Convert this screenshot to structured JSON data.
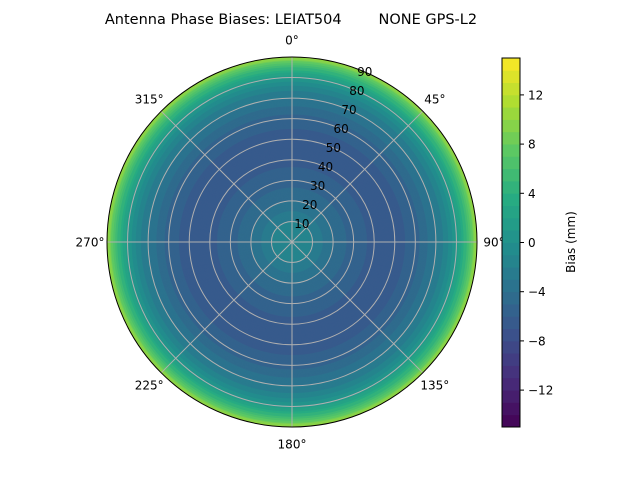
{
  "chart_data": {
    "type": "polar-contour",
    "title": "Antenna Phase Biases: LEIAT504        NONE GPS-L2",
    "colormap": "viridis",
    "angular_ticks": [
      "0°",
      "45°",
      "90°",
      "135°",
      "180°",
      "225°",
      "270°",
      "315°"
    ],
    "angular_tick_values": [
      0,
      45,
      90,
      135,
      180,
      225,
      270,
      315
    ],
    "radial_ticks": [
      "10",
      "20",
      "30",
      "40",
      "50",
      "60",
      "70",
      "80",
      "90"
    ],
    "radial_tick_values": [
      10,
      20,
      30,
      40,
      50,
      60,
      70,
      80,
      90
    ],
    "rlim": [
      0,
      90
    ],
    "theta_direction": "clockwise",
    "theta_zero": "top",
    "grid": true,
    "radial_profile": {
      "zenith": [
        0,
        5,
        10,
        20,
        30,
        40,
        50,
        60,
        70,
        75,
        80,
        85,
        88,
        90
      ],
      "bias": [
        -1,
        -1.5,
        -2,
        -4,
        -5.5,
        -6.3,
        -6.5,
        -5.5,
        -3,
        -1.5,
        1,
        5,
        8,
        11
      ]
    },
    "colorbar": {
      "label": "Bias (mm)",
      "range": [
        -15,
        15
      ],
      "level_step": 1,
      "ticks": [
        "−12",
        "−8",
        "−4",
        "0",
        "4",
        "8",
        "12"
      ],
      "tick_values": [
        -12,
        -8,
        -4,
        0,
        4,
        8,
        12
      ]
    }
  }
}
